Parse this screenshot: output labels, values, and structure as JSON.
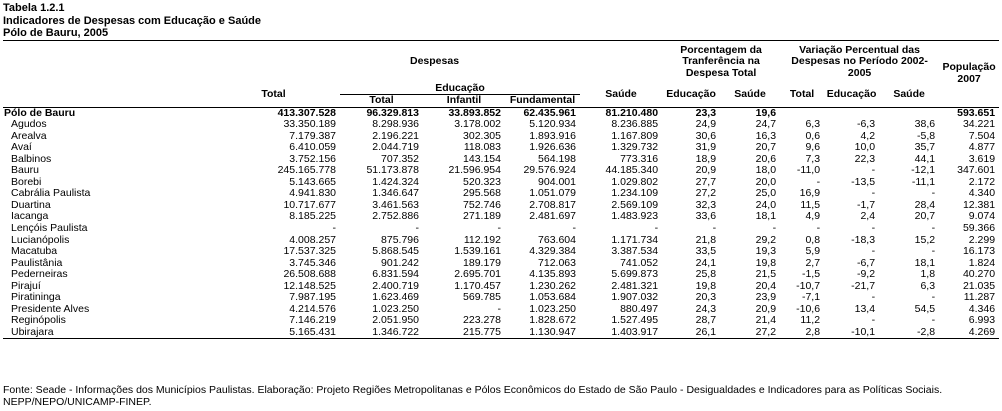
{
  "heading": {
    "table_id": "Tabela 1.2.1",
    "title": "Indicadores de Despesas com Educação e Saúde",
    "subtitle": "Pólo de Bauru, 2005"
  },
  "columns": {
    "despesas": "Despesas",
    "total": "Total",
    "educacao": "Educação",
    "edu_total": "Total",
    "infantil": "Infantil",
    "fundamental": "Fundamental",
    "saude": "Saúde",
    "porcentagem": "Porcentagem da Tranferência na Despesa Total",
    "pct_educacao": "Educação",
    "pct_saude": "Saúde",
    "variacao": "Variação Percentual das Despesas no Período 2002-2005",
    "var_total": "Total",
    "var_educacao": "Educação",
    "var_saude": "Saúde",
    "populacao": "População 2007"
  },
  "rows": [
    {
      "name": "Pólo de Bauru",
      "total": "413.307.528",
      "edu_total": "96.329.813",
      "infantil": "33.893.852",
      "fundamental": "62.435.961",
      "saude": "81.210.480",
      "pct_edu": "23,3",
      "pct_saude": "19,6",
      "var_total": "",
      "var_edu": "",
      "var_saude": "",
      "pop": "593.651"
    },
    {
      "name": "Agudos",
      "total": "33.350.189",
      "edu_total": "8.298.936",
      "infantil": "3.178.002",
      "fundamental": "5.120.934",
      "saude": "8.236.885",
      "pct_edu": "24,9",
      "pct_saude": "24,7",
      "var_total": "6,3",
      "var_edu": "-6,3",
      "var_saude": "38,6",
      "pop": "34.221"
    },
    {
      "name": "Arealva",
      "total": "7.179.387",
      "edu_total": "2.196.221",
      "infantil": "302.305",
      "fundamental": "1.893.916",
      "saude": "1.167.809",
      "pct_edu": "30,6",
      "pct_saude": "16,3",
      "var_total": "0,6",
      "var_edu": "4,2",
      "var_saude": "-5,8",
      "pop": "7.504"
    },
    {
      "name": "Avaí",
      "total": "6.410.059",
      "edu_total": "2.044.719",
      "infantil": "118.083",
      "fundamental": "1.926.636",
      "saude": "1.329.732",
      "pct_edu": "31,9",
      "pct_saude": "20,7",
      "var_total": "9,6",
      "var_edu": "10,0",
      "var_saude": "35,7",
      "pop": "4.877"
    },
    {
      "name": "Balbinos",
      "total": "3.752.156",
      "edu_total": "707.352",
      "infantil": "143.154",
      "fundamental": "564.198",
      "saude": "773.316",
      "pct_edu": "18,9",
      "pct_saude": "20,6",
      "var_total": "7,3",
      "var_edu": "22,3",
      "var_saude": "44,1",
      "pop": "3.619"
    },
    {
      "name": "Bauru",
      "total": "245.165.778",
      "edu_total": "51.173.878",
      "infantil": "21.596.954",
      "fundamental": "29.576.924",
      "saude": "44.185.340",
      "pct_edu": "20,9",
      "pct_saude": "18,0",
      "var_total": "-11,0",
      "var_edu": "-",
      "var_saude": "-12,1",
      "pop": "347.601"
    },
    {
      "name": "Borebi",
      "total": "5.143.665",
      "edu_total": "1.424.324",
      "infantil": "520.323",
      "fundamental": "904.001",
      "saude": "1.029.802",
      "pct_edu": "27,7",
      "pct_saude": "20,0",
      "var_total": "-",
      "var_edu": "-13,5",
      "var_saude": "-11,1",
      "pop": "2.172"
    },
    {
      "name": "Cabrália Paulista",
      "total": "4.941.830",
      "edu_total": "1.346.647",
      "infantil": "295.568",
      "fundamental": "1.051.079",
      "saude": "1.234.109",
      "pct_edu": "27,2",
      "pct_saude": "25,0",
      "var_total": "16,9",
      "var_edu": "-",
      "var_saude": "-",
      "pop": "4.340"
    },
    {
      "name": "Duartina",
      "total": "10.717.677",
      "edu_total": "3.461.563",
      "infantil": "752.746",
      "fundamental": "2.708.817",
      "saude": "2.569.109",
      "pct_edu": "32,3",
      "pct_saude": "24,0",
      "var_total": "11,5",
      "var_edu": "-1,7",
      "var_saude": "28,4",
      "pop": "12.381"
    },
    {
      "name": "Iacanga",
      "total": "8.185.225",
      "edu_total": "2.752.886",
      "infantil": "271.189",
      "fundamental": "2.481.697",
      "saude": "1.483.923",
      "pct_edu": "33,6",
      "pct_saude": "18,1",
      "var_total": "4,9",
      "var_edu": "2,4",
      "var_saude": "20,7",
      "pop": "9.074"
    },
    {
      "name": "Lençóis Paulista",
      "total": "-",
      "edu_total": "-",
      "infantil": "-",
      "fundamental": "-",
      "saude": "-",
      "pct_edu": "-",
      "pct_saude": "-",
      "var_total": "-",
      "var_edu": "-",
      "var_saude": "-",
      "pop": "59.366"
    },
    {
      "name": "Lucianópolis",
      "total": "4.008.257",
      "edu_total": "875.796",
      "infantil": "112.192",
      "fundamental": "763.604",
      "saude": "1.171.734",
      "pct_edu": "21,8",
      "pct_saude": "29,2",
      "var_total": "0,8",
      "var_edu": "-18,3",
      "var_saude": "15,2",
      "pop": "2.299"
    },
    {
      "name": "Macatuba",
      "total": "17.537.325",
      "edu_total": "5.868.545",
      "infantil": "1.539.161",
      "fundamental": "4.329.384",
      "saude": "3.387.534",
      "pct_edu": "33,5",
      "pct_saude": "19,3",
      "var_total": "5,9",
      "var_edu": "-",
      "var_saude": "-",
      "pop": "16.173"
    },
    {
      "name": "Paulistânia",
      "total": "3.745.346",
      "edu_total": "901.242",
      "infantil": "189.179",
      "fundamental": "712.063",
      "saude": "741.052",
      "pct_edu": "24,1",
      "pct_saude": "19,8",
      "var_total": "2,7",
      "var_edu": "-6,7",
      "var_saude": "18,1",
      "pop": "1.824"
    },
    {
      "name": "Pederneiras",
      "total": "26.508.688",
      "edu_total": "6.831.594",
      "infantil": "2.695.701",
      "fundamental": "4.135.893",
      "saude": "5.699.873",
      "pct_edu": "25,8",
      "pct_saude": "21,5",
      "var_total": "-1,5",
      "var_edu": "-9,2",
      "var_saude": "1,8",
      "pop": "40.270"
    },
    {
      "name": "Pirajuí",
      "total": "12.148.525",
      "edu_total": "2.400.719",
      "infantil": "1.170.457",
      "fundamental": "1.230.262",
      "saude": "2.481.321",
      "pct_edu": "19,8",
      "pct_saude": "20,4",
      "var_total": "-10,7",
      "var_edu": "-21,7",
      "var_saude": "6,3",
      "pop": "21.035"
    },
    {
      "name": "Piratininga",
      "total": "7.987.195",
      "edu_total": "1.623.469",
      "infantil": "569.785",
      "fundamental": "1.053.684",
      "saude": "1.907.032",
      "pct_edu": "20,3",
      "pct_saude": "23,9",
      "var_total": "-7,1",
      "var_edu": "-",
      "var_saude": "-",
      "pop": "11.287"
    },
    {
      "name": "Presidente Alves",
      "total": "4.214.576",
      "edu_total": "1.023.250",
      "infantil": "-",
      "fundamental": "1.023.250",
      "saude": "880.497",
      "pct_edu": "24,3",
      "pct_saude": "20,9",
      "var_total": "-10,6",
      "var_edu": "13,4",
      "var_saude": "54,5",
      "pop": "4.346"
    },
    {
      "name": "Reginópolis",
      "total": "7.146.219",
      "edu_total": "2.051.950",
      "infantil": "223.278",
      "fundamental": "1.828.672",
      "saude": "1.527.495",
      "pct_edu": "28,7",
      "pct_saude": "21,4",
      "var_total": "11,2",
      "var_edu": "-",
      "var_saude": "-",
      "pop": "6.993"
    },
    {
      "name": "Ubirajara",
      "total": "5.165.431",
      "edu_total": "1.346.722",
      "infantil": "215.775",
      "fundamental": "1.130.947",
      "saude": "1.403.917",
      "pct_edu": "26,1",
      "pct_saude": "27,2",
      "var_total": "2,8",
      "var_edu": "-10,1",
      "var_saude": "-2,8",
      "pop": "4.269"
    }
  ],
  "footer": {
    "source": "Fonte: Seade - Informações dos Municípios Paulistas. Elaboração: Projeto Regiões Metropolitanas e Pólos Econômicos do Estado de São Paulo - Desigualdades e Indicadores para as Políticas Sociais.",
    "credits": "NEPP/NEPO/UNICAMP-FINEP."
  }
}
